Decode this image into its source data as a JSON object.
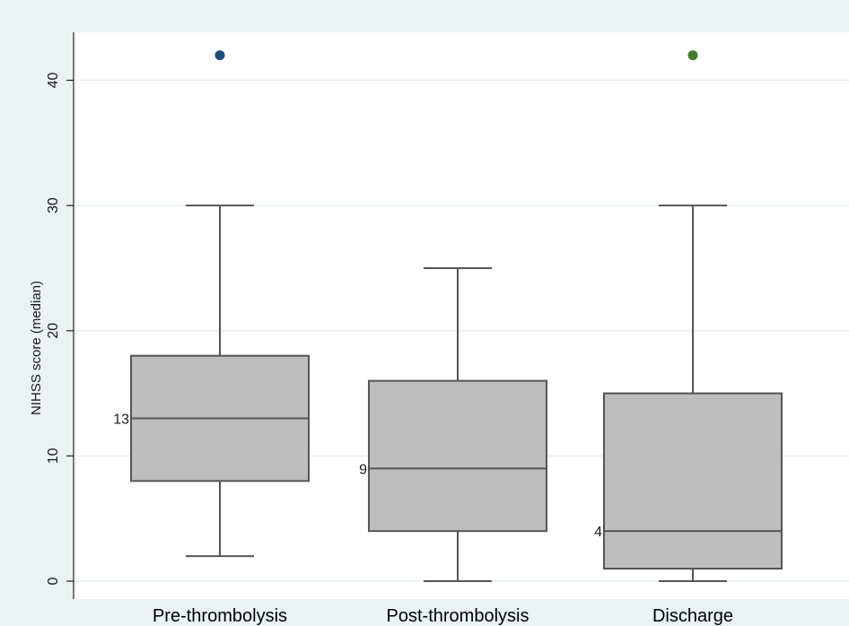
{
  "chart_data": {
    "type": "box",
    "ylabel": "NIHSS score (median)",
    "ylim": [
      0,
      43
    ],
    "yticks": [
      0,
      10,
      20,
      30,
      40
    ],
    "grid": true,
    "categories": [
      "Pre-thrombolysis",
      "Post-thrombolysis",
      "Discharge"
    ],
    "boxes": [
      {
        "category": "Pre-thrombolysis",
        "whisker_low": 2,
        "q1": 8,
        "median": 13,
        "q3": 18,
        "whisker_high": 30,
        "outliers": [
          42
        ],
        "outlier_color": "#1f4e79",
        "median_label": "13"
      },
      {
        "category": "Post-thrombolysis",
        "whisker_low": 0,
        "q1": 4,
        "median": 9,
        "q3": 16,
        "whisker_high": 25,
        "outliers": [],
        "outlier_color": "#1f4e79",
        "median_label": "9"
      },
      {
        "category": "Discharge",
        "whisker_low": 0,
        "q1": 1,
        "median": 4,
        "q3": 15,
        "whisker_high": 30,
        "outliers": [
          42
        ],
        "outlier_color": "#4a7a2e",
        "median_label": "4"
      }
    ],
    "colors": {
      "box_fill": "#bdbdbd",
      "box_stroke": "#555555",
      "plot_bg": "#ffffff",
      "outer_bg": "#eaf2f3",
      "grid": "#e3eeee"
    }
  }
}
